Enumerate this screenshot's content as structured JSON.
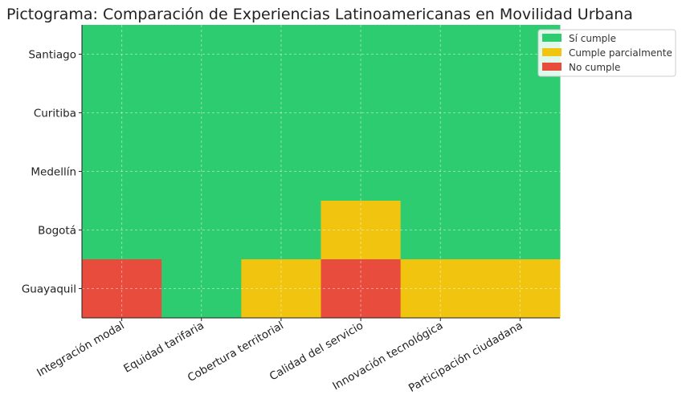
{
  "chart_data": {
    "type": "heatmap",
    "title": "Pictograma: Comparación de Experiencias Latinoamericanas en Movilidad Urbana",
    "xlabel": "",
    "ylabel": "",
    "x_categories": [
      "Integración modal",
      "Equidad tarifaria",
      "Cobertura territorial",
      "Calidad del servicio",
      "Innovación tecnológica",
      "Participación ciudadana"
    ],
    "y_categories": [
      "Santiago",
      "Curitiba",
      "Medellín",
      "Bogotá",
      "Guayaquil"
    ],
    "values": [
      [
        "Sí cumple",
        "Sí cumple",
        "Sí cumple",
        "Sí cumple",
        "Sí cumple",
        "Sí cumple"
      ],
      [
        "Sí cumple",
        "Sí cumple",
        "Sí cumple",
        "Sí cumple",
        "Sí cumple",
        "Sí cumple"
      ],
      [
        "Sí cumple",
        "Sí cumple",
        "Sí cumple",
        "Sí cumple",
        "Sí cumple",
        "Sí cumple"
      ],
      [
        "Sí cumple",
        "Sí cumple",
        "Sí cumple",
        "Cumple parcialmente",
        "Sí cumple",
        "Sí cumple"
      ],
      [
        "No cumple",
        "Sí cumple",
        "Cumple parcialmente",
        "No cumple",
        "Cumple parcialmente",
        "Cumple parcialmente"
      ]
    ],
    "legend": [
      {
        "label": "Sí cumple",
        "color": "#2ecc71"
      },
      {
        "label": "Cumple parcialmente",
        "color": "#f1c40f"
      },
      {
        "label": "No cumple",
        "color": "#e74c3c"
      }
    ],
    "legend_position": "top-right",
    "grid": true
  }
}
